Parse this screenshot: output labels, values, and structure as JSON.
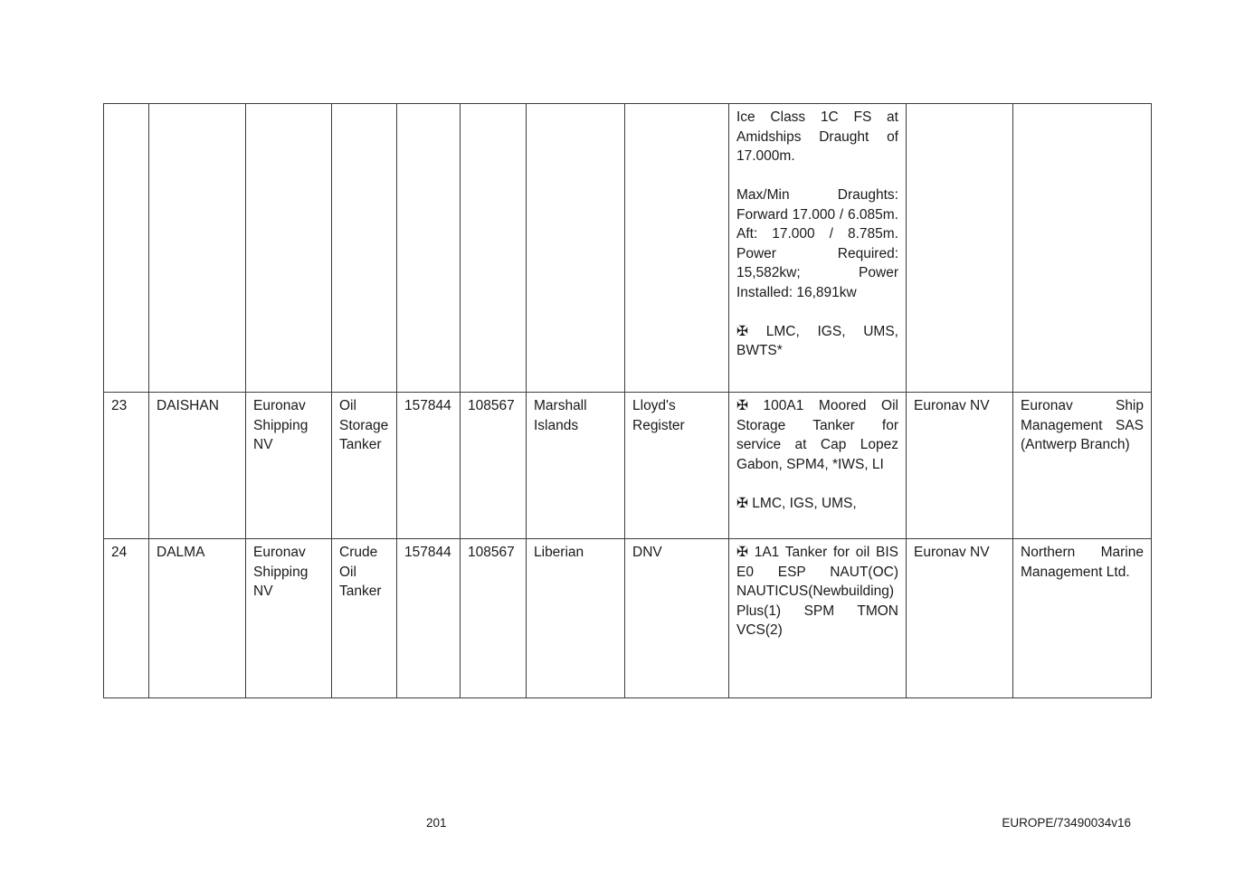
{
  "footer": {
    "page_number": "201",
    "doc_reference": "EUROPE/73490034v16"
  },
  "table": {
    "continuation_row": {
      "class_notations": [
        "Ice Class 1C FS at Amidships Draught of 17.000m.",
        "Max/Min Draughts: Forward 17.000 / 6.085m. Aft: 17.000 / 8.785m. Power Required: 15,582kw; Power Installed: 16,891kw",
        "✠ LMC, IGS, UMS, BWTS*"
      ]
    },
    "rows": [
      {
        "no": "23",
        "vessel_name": "DAISHAN",
        "owner": "Euronav Shipping NV",
        "vessel_type": "Oil Storage Tanker",
        "figure_1": "157844",
        "figure_2": "108567",
        "flag": "Marshall Islands",
        "classification_society": "Lloyd's Register",
        "class_notations": [
          "✠ 100A1 Moored Oil Storage Tanker for service at Cap Lopez Gabon, SPM4, *IWS, LI",
          "✠ LMC, IGS, UMS,"
        ],
        "manager": "Euronav NV",
        "ship_manager": "Euronav Ship Management SAS (Antwerp Branch)"
      },
      {
        "no": "24",
        "vessel_name": "DALMA",
        "owner": "Euronav Shipping NV",
        "vessel_type": "Crude Oil Tanker",
        "figure_1": "157844",
        "figure_2": "108567",
        "flag": "Liberian",
        "classification_society": "DNV",
        "class_notations": [
          "✠ 1A1 Tanker for oil BIS E0 ESP NAUT(OC) NAUTICUS(Newbuilding) Plus(1) SPM TMON VCS(2)"
        ],
        "manager": "Euronav NV",
        "ship_manager": "Northern Marine Management Ltd."
      }
    ]
  }
}
